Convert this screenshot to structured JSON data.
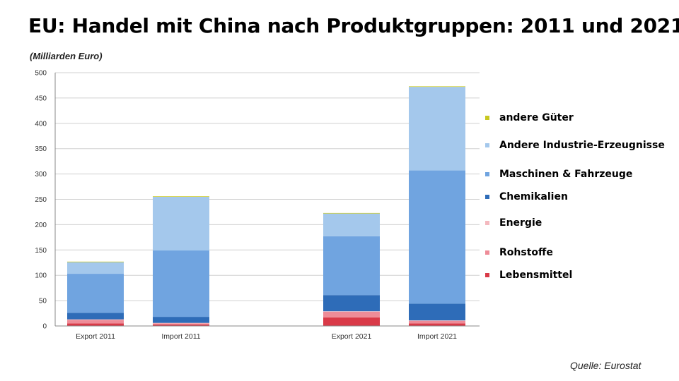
{
  "title": "EU: Handel mit China nach Produktgruppen: 2011 und 2021",
  "unit_label": "(Milliarden Euro)",
  "source": "Quelle: Eurostat",
  "chart_data": {
    "type": "bar",
    "stacked": true,
    "categories": [
      "Export 2011",
      "Import 2011",
      "Export 2021",
      "Import 2021"
    ],
    "ylim": [
      0,
      500
    ],
    "yticks": [
      0,
      50,
      100,
      150,
      200,
      250,
      300,
      350,
      400,
      450,
      500
    ],
    "grid": true,
    "legend_position": "right",
    "series": [
      {
        "name": "Lebensmittel",
        "color": "#d93a48",
        "values": [
          5,
          3,
          17,
          5
        ]
      },
      {
        "name": "Rohstoffe",
        "color": "#ee8c98",
        "values": [
          7,
          2,
          11,
          5
        ]
      },
      {
        "name": "Energie",
        "color": "#f4b9bf",
        "values": [
          1,
          1,
          1,
          1
        ]
      },
      {
        "name": "Chemikalien",
        "color": "#2e6cb8",
        "values": [
          13,
          12,
          32,
          33
        ]
      },
      {
        "name": "Maschinen & Fahrzeuge",
        "color": "#70a4e0",
        "values": [
          77,
          131,
          116,
          263
        ]
      },
      {
        "name": "Andere Industrie-Erzeugnisse",
        "color": "#a4c8ec",
        "values": [
          23,
          106,
          45,
          165
        ]
      },
      {
        "name": "andere Güter",
        "color": "#c8c820",
        "values": [
          1,
          1,
          1,
          1
        ]
      }
    ]
  }
}
